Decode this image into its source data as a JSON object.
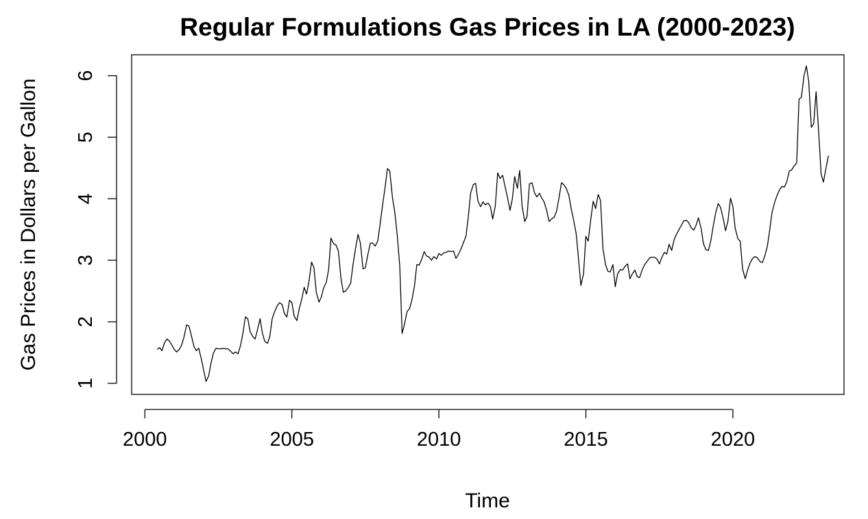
{
  "chart_data": {
    "type": "line",
    "title": "Regular Formulations Gas Prices in LA (2000-2023)",
    "xlabel": "Time",
    "ylabel": "Gas Prices in Dollars per Gallon",
    "xlim": [
      1999.55,
      2023.78
    ],
    "ylim": [
      0.82,
      6.34
    ],
    "xticks": [
      2000,
      2005,
      2010,
      2015,
      2020
    ],
    "xtick_labels": [
      "2000",
      "2005",
      "2010",
      "2015",
      "2020"
    ],
    "yticks": [
      1,
      2,
      3,
      4,
      5,
      6
    ],
    "ytick_labels": [
      "1",
      "2",
      "3",
      "4",
      "5",
      "6"
    ],
    "grid": false,
    "legend": "none",
    "color": "#000000",
    "series": [
      {
        "x": [
          2000.42,
          2000.5,
          2000.58,
          2000.67,
          2000.75,
          2000.83,
          2000.92,
          2001.0,
          2001.08,
          2001.17,
          2001.25,
          2001.33,
          2001.42,
          2001.5,
          2001.58,
          2001.67,
          2001.75,
          2001.83,
          2001.92,
          2002.0,
          2002.08,
          2002.17,
          2002.25,
          2002.33,
          2002.42,
          2002.5,
          2002.58,
          2002.67,
          2002.75,
          2002.83,
          2002.92,
          2003.0,
          2003.08,
          2003.17,
          2003.25,
          2003.33,
          2003.42,
          2003.5,
          2003.58,
          2003.67,
          2003.75,
          2003.83,
          2003.92,
          2004.0,
          2004.08,
          2004.17,
          2004.25,
          2004.33,
          2004.42,
          2004.5,
          2004.58,
          2004.67,
          2004.75,
          2004.83,
          2004.92,
          2005.0,
          2005.08,
          2005.17,
          2005.25,
          2005.33,
          2005.42,
          2005.5,
          2005.58,
          2005.67,
          2005.75,
          2005.83,
          2005.92,
          2006.0,
          2006.08,
          2006.17,
          2006.25,
          2006.33,
          2006.42,
          2006.5,
          2006.58,
          2006.67,
          2006.75,
          2006.83,
          2006.92,
          2007.0,
          2007.08,
          2007.17,
          2007.25,
          2007.33,
          2007.42,
          2007.5,
          2007.58,
          2007.67,
          2007.75,
          2007.83,
          2007.92,
          2008.0,
          2008.08,
          2008.17,
          2008.25,
          2008.33,
          2008.42,
          2008.5,
          2008.58,
          2008.67,
          2008.75,
          2008.83,
          2008.92,
          2009.0,
          2009.08,
          2009.17,
          2009.25,
          2009.33,
          2009.42,
          2009.5,
          2009.58,
          2009.67,
          2009.75,
          2009.83,
          2009.92,
          2010.0,
          2010.08,
          2010.17,
          2010.25,
          2010.33,
          2010.42,
          2010.5,
          2010.58,
          2010.67,
          2010.75,
          2010.83,
          2010.92,
          2011.0,
          2011.08,
          2011.17,
          2011.25,
          2011.33,
          2011.42,
          2011.5,
          2011.58,
          2011.67,
          2011.75,
          2011.83,
          2011.92,
          2012.0,
          2012.08,
          2012.17,
          2012.25,
          2012.33,
          2012.42,
          2012.5,
          2012.58,
          2012.67,
          2012.75,
          2012.83,
          2012.92,
          2013.0,
          2013.08,
          2013.17,
          2013.25,
          2013.33,
          2013.42,
          2013.5,
          2013.58,
          2013.67,
          2013.75,
          2013.83,
          2013.92,
          2014.0,
          2014.08,
          2014.17,
          2014.25,
          2014.33,
          2014.42,
          2014.5,
          2014.58,
          2014.67,
          2014.75,
          2014.83,
          2014.92,
          2015.0,
          2015.08,
          2015.17,
          2015.25,
          2015.33,
          2015.42,
          2015.5,
          2015.58,
          2015.67,
          2015.75,
          2015.83,
          2015.92,
          2016.0,
          2016.08,
          2016.17,
          2016.25,
          2016.33,
          2016.42,
          2016.5,
          2016.58,
          2016.67,
          2016.75,
          2016.83,
          2016.92,
          2017.0,
          2017.08,
          2017.17,
          2017.25,
          2017.33,
          2017.42,
          2017.5,
          2017.58,
          2017.67,
          2017.75,
          2017.83,
          2017.92,
          2018.0,
          2018.08,
          2018.17,
          2018.25,
          2018.33,
          2018.42,
          2018.5,
          2018.58,
          2018.67,
          2018.75,
          2018.83,
          2018.92,
          2019.0,
          2019.08,
          2019.17,
          2019.25,
          2019.33,
          2019.42,
          2019.5,
          2019.58,
          2019.67,
          2019.75,
          2019.83,
          2019.92,
          2020.0,
          2020.08,
          2020.17,
          2020.25,
          2020.33,
          2020.42,
          2020.5,
          2020.58,
          2020.67,
          2020.75,
          2020.83,
          2020.92,
          2021.0,
          2021.08,
          2021.17,
          2021.25,
          2021.33,
          2021.42,
          2021.5,
          2021.58,
          2021.67,
          2021.75,
          2021.83,
          2021.92,
          2022.0,
          2022.08,
          2022.17,
          2022.25,
          2022.33,
          2022.42,
          2022.5,
          2022.58,
          2022.67,
          2022.75,
          2022.83,
          2022.92,
          2023.0,
          2023.08,
          2023.17,
          2023.25
        ],
        "y": [
          1.55,
          1.58,
          1.53,
          1.66,
          1.72,
          1.69,
          1.62,
          1.55,
          1.51,
          1.55,
          1.62,
          1.75,
          1.95,
          1.93,
          1.78,
          1.6,
          1.53,
          1.57,
          1.4,
          1.21,
          1.03,
          1.12,
          1.33,
          1.49,
          1.57,
          1.56,
          1.56,
          1.57,
          1.56,
          1.56,
          1.52,
          1.48,
          1.51,
          1.48,
          1.61,
          1.8,
          2.08,
          2.05,
          1.84,
          1.76,
          1.72,
          1.87,
          2.05,
          1.81,
          1.68,
          1.65,
          1.76,
          2.05,
          2.17,
          2.26,
          2.31,
          2.28,
          2.13,
          2.08,
          2.35,
          2.31,
          2.09,
          2.02,
          2.21,
          2.36,
          2.56,
          2.45,
          2.65,
          2.97,
          2.88,
          2.48,
          2.32,
          2.4,
          2.55,
          2.64,
          2.85,
          3.36,
          3.27,
          3.25,
          3.15,
          2.71,
          2.48,
          2.5,
          2.56,
          2.63,
          2.93,
          3.21,
          3.42,
          3.28,
          2.86,
          2.88,
          3.08,
          3.28,
          3.28,
          3.23,
          3.31,
          3.58,
          3.88,
          4.18,
          4.49,
          4.45,
          4.02,
          3.78,
          3.43,
          2.9,
          1.81,
          1.96,
          2.17,
          2.21,
          2.35,
          2.58,
          2.93,
          2.92,
          3.02,
          3.14,
          3.07,
          3.05,
          3.0,
          3.06,
          3.02,
          3.11,
          3.08,
          3.12,
          3.13,
          3.15,
          3.14,
          3.15,
          3.03,
          3.1,
          3.18,
          3.28,
          3.39,
          3.7,
          4.09,
          4.23,
          4.25,
          3.96,
          3.87,
          3.95,
          3.9,
          3.93,
          3.88,
          3.67,
          3.88,
          4.42,
          4.33,
          4.38,
          4.2,
          4.03,
          3.81,
          4.0,
          4.36,
          4.17,
          4.46,
          3.88,
          3.63,
          3.71,
          4.24,
          4.26,
          4.1,
          4.03,
          4.09,
          4.01,
          3.95,
          3.8,
          3.63,
          3.67,
          3.7,
          3.79,
          4.0,
          4.26,
          4.23,
          4.17,
          4.06,
          3.84,
          3.66,
          3.43,
          3.02,
          2.59,
          2.78,
          3.39,
          3.31,
          3.68,
          3.96,
          3.84,
          4.07,
          3.97,
          3.19,
          2.93,
          2.82,
          2.81,
          2.93,
          2.57,
          2.78,
          2.85,
          2.84,
          2.9,
          2.94,
          2.7,
          2.78,
          2.84,
          2.73,
          2.72,
          2.85,
          2.93,
          2.98,
          3.04,
          3.05,
          3.05,
          3.02,
          2.94,
          3.04,
          3.13,
          3.1,
          3.26,
          3.16,
          3.33,
          3.42,
          3.5,
          3.57,
          3.64,
          3.65,
          3.61,
          3.53,
          3.49,
          3.57,
          3.69,
          3.52,
          3.27,
          3.17,
          3.16,
          3.32,
          3.55,
          3.78,
          3.92,
          3.86,
          3.68,
          3.48,
          3.63,
          4.01,
          3.87,
          3.52,
          3.35,
          3.31,
          2.86,
          2.7,
          2.84,
          2.95,
          3.03,
          3.06,
          3.04,
          2.98,
          2.96,
          3.06,
          3.22,
          3.48,
          3.77,
          3.94,
          4.05,
          4.14,
          4.2,
          4.19,
          4.27,
          4.45,
          4.47,
          4.53,
          4.58,
          5.62,
          5.65,
          6.0,
          6.16,
          5.91,
          5.16,
          5.22,
          5.74,
          5.08,
          4.4,
          4.27,
          4.5,
          4.7
        ]
      }
    ]
  }
}
